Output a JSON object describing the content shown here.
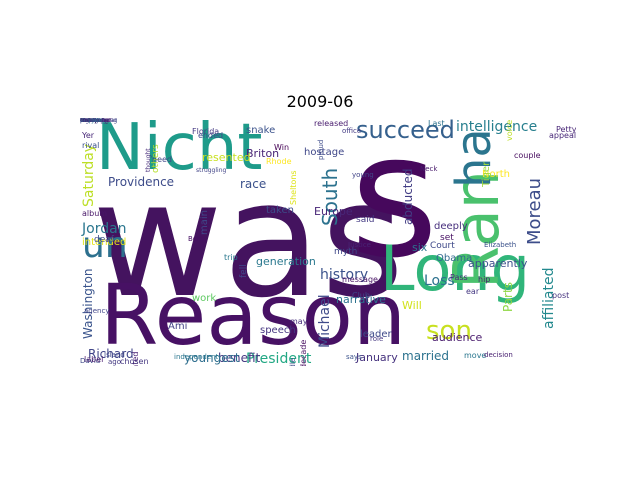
{
  "title": "2009-06",
  "words": [
    {
      "text": "was",
      "color": "#44135f"
    },
    {
      "text": "s",
      "color": "#46085c"
    },
    {
      "text": "Reason",
      "color": "#471164"
    },
    {
      "text": "Nicht",
      "color": "#1e9b8a"
    },
    {
      "text": "Long",
      "color": "#30b57a"
    },
    {
      "text": "Ran",
      "color": "#4ac16d"
    },
    {
      "text": "ha",
      "color": "#2b758e"
    },
    {
      "text": "un",
      "color": "#2d708e"
    },
    {
      "text": "son",
      "color": "#c8e020"
    },
    {
      "text": "succeed",
      "color": "#35608d"
    },
    {
      "text": "intelligence",
      "color": "#277f8e"
    },
    {
      "text": "South",
      "color": "#2c728e"
    },
    {
      "text": "Moreau",
      "color": "#3d4d8a"
    },
    {
      "text": "affiliated",
      "color": "#23898e"
    },
    {
      "text": "history",
      "color": "#3b528b"
    },
    {
      "text": "Loss",
      "color": "#2c718e"
    },
    {
      "text": "Providence",
      "color": "#3e4c8a"
    },
    {
      "text": "Saturday",
      "color": "#bddf26"
    },
    {
      "text": "race",
      "color": "#3b518b"
    },
    {
      "text": "President",
      "color": "#22a884"
    },
    {
      "text": "benefit",
      "color": "#453882"
    },
    {
      "text": "Richard",
      "color": "#404588"
    },
    {
      "text": "married",
      "color": "#2c728e"
    },
    {
      "text": "Washington",
      "color": "#3a548c"
    },
    {
      "text": "Jordan",
      "color": "#2a768e"
    },
    {
      "text": "Will",
      "color": "#d2e21b"
    },
    {
      "text": "Michael",
      "color": "#3e4a89"
    },
    {
      "text": "apparently",
      "color": "#3b518b"
    },
    {
      "text": "Obama",
      "color": "#31688e"
    },
    {
      "text": "youngest",
      "color": "#2e6e8e"
    },
    {
      "text": "fell",
      "color": "#404688"
    },
    {
      "text": "work",
      "color": "#5ec962"
    },
    {
      "text": "Ami",
      "color": "#424086"
    },
    {
      "text": "intended",
      "color": "#e5e419"
    },
    {
      "text": "abducted",
      "color": "#433e85"
    },
    {
      "text": "deeply",
      "color": "#472f7d"
    },
    {
      "text": "six",
      "color": "#2c728e"
    },
    {
      "text": "taken",
      "color": "#3e4c8a"
    },
    {
      "text": "Briton",
      "color": "#482475"
    },
    {
      "text": "resented",
      "color": "#c8e020"
    },
    {
      "text": "speech",
      "color": "#453581"
    },
    {
      "text": "main",
      "color": "#3f4788"
    },
    {
      "text": "audience",
      "color": "#481a6c"
    },
    {
      "text": "January",
      "color": "#46327e"
    },
    {
      "text": "generation",
      "color": "#2a788e"
    },
    {
      "text": "narrative",
      "color": "#2c728e"
    },
    {
      "text": "confronted",
      "color": "#482173"
    },
    {
      "text": "chosen",
      "color": "#453781"
    },
    {
      "text": "agency",
      "color": "#404588"
    },
    {
      "text": "Europe",
      "color": "#482677"
    },
    {
      "text": "leader",
      "color": "#3e4a89"
    },
    {
      "text": "myth",
      "color": "#3f4788"
    },
    {
      "text": "decade",
      "color": "#470e61"
    },
    {
      "text": "said",
      "color": "#443a83"
    },
    {
      "text": "North",
      "color": "#fde725"
    },
    {
      "text": "Parts",
      "color": "#8fd744"
    },
    {
      "text": "Tiger",
      "color": "#a0da39"
    },
    {
      "text": "snake",
      "color": "#3b528b"
    },
    {
      "text": "hostage",
      "color": "#3f4788"
    },
    {
      "text": "deaf",
      "color": "#3e4a89"
    },
    {
      "text": "message",
      "color": "#471365"
    },
    {
      "text": "Win",
      "color": "#440154"
    },
    {
      "text": "Yer",
      "color": "#482878"
    },
    {
      "text": "rival",
      "color": "#3b528b"
    },
    {
      "text": "album",
      "color": "#481668"
    },
    {
      "text": "ended",
      "color": "#3e4989"
    },
    {
      "text": "others",
      "color": "#b5de2b"
    },
    {
      "text": "need",
      "color": "#3f4788"
    },
    {
      "text": "Last",
      "color": "#2c728e"
    },
    {
      "text": "Court",
      "color": "#3e4989"
    },
    {
      "text": "set",
      "color": "#471063"
    },
    {
      "text": "ear",
      "color": "#453882"
    },
    {
      "text": "hip",
      "color": "#481f70"
    },
    {
      "text": "post",
      "color": "#46337f"
    },
    {
      "text": "ago",
      "color": "#443983"
    },
    {
      "text": "may",
      "color": "#472e7c"
    },
    {
      "text": "trip",
      "color": "#2a788e"
    },
    {
      "text": "Middle",
      "color": "#3e4a89"
    },
    {
      "text": "couple",
      "color": "#460b5e"
    },
    {
      "text": "Petty",
      "color": "#482677"
    },
    {
      "text": "Florida",
      "color": "#443a83"
    },
    {
      "text": "Sheltons",
      "color": "#dde318"
    },
    {
      "text": "released",
      "color": "#481c6e"
    },
    {
      "text": "Justice",
      "color": "#482475"
    },
    {
      "text": "Boris",
      "color": "#471164"
    },
    {
      "text": "says",
      "color": "#3b528b"
    },
    {
      "text": "White",
      "color": "#440154"
    },
    {
      "text": "Club",
      "color": "#404588"
    },
    {
      "text": "move",
      "color": "#2a768e"
    },
    {
      "text": "David",
      "color": "#3e4a89"
    },
    {
      "text": "Island",
      "color": "#3f4788"
    },
    {
      "text": "label",
      "color": "#481b6d"
    },
    {
      "text": "struggling",
      "color": "#414487"
    },
    {
      "text": "young",
      "color": "#414487"
    },
    {
      "text": "independent",
      "color": "#2a768e"
    },
    {
      "text": "decision",
      "color": "#482071"
    },
    {
      "text": "role",
      "color": "#453781"
    },
    {
      "text": "proud",
      "color": "#3e4c8a"
    },
    {
      "text": "thought",
      "color": "#472c7a"
    },
    {
      "text": "Neck",
      "color": "#481a6c"
    },
    {
      "text": "office",
      "color": "#443b84"
    },
    {
      "text": "Elizabeth",
      "color": "#3b528b"
    },
    {
      "text": "appeal",
      "color": "#482878"
    },
    {
      "text": "voice",
      "color": "#bddf26"
    },
    {
      "text": "Rhode",
      "color": "#fde725"
    },
    {
      "text": "Pass",
      "color": "#482878"
    },
    {
      "text": "demand",
      "color": "#481b6d"
    },
    {
      "text": "obscurity",
      "color": "#472f7d"
    },
    {
      "text": "policy",
      "color": "#3b518b"
    },
    {
      "text": "forced",
      "color": "#46327e"
    },
    {
      "text": "Garden",
      "color": "#c8e020"
    },
    {
      "text": "Ellenfopping",
      "color": "#3e4a89"
    },
    {
      "text": "Westwood",
      "color": "#482677"
    },
    {
      "text": "associate",
      "color": "#3b528b"
    },
    {
      "text": "amontagnar",
      "color": "#433e85"
    },
    {
      "text": "collecting",
      "color": "#481668"
    },
    {
      "text": "Dewitt",
      "color": "#404588"
    },
    {
      "text": "short",
      "color": "#31688e"
    },
    {
      "text": "remember",
      "color": "#471365"
    },
    {
      "text": "Security",
      "color": "#3b528b"
    },
    {
      "text": "Centre",
      "color": "#5ec962"
    },
    {
      "text": "Group",
      "color": "#440154"
    },
    {
      "text": "Cali",
      "color": "#1f9e89"
    },
    {
      "text": "Family",
      "color": "#3b528b"
    },
    {
      "text": "Boston",
      "color": "#481c6e"
    },
    {
      "text": "peak",
      "color": "#3e4a89"
    },
    {
      "text": "body",
      "color": "#2a768e"
    },
    {
      "text": "Farewell",
      "color": "#433e85"
    },
    {
      "text": "vacation",
      "color": "#482475"
    },
    {
      "text": "coaster",
      "color": "#443a83"
    },
    {
      "text": "done",
      "color": "#46327e"
    },
    {
      "text": "Mother",
      "color": "#3b528b"
    },
    {
      "text": "dispute",
      "color": "#2c728e"
    },
    {
      "text": "rest",
      "color": "#46085c"
    },
    {
      "text": "legal",
      "color": "#3f4788"
    }
  ]
}
